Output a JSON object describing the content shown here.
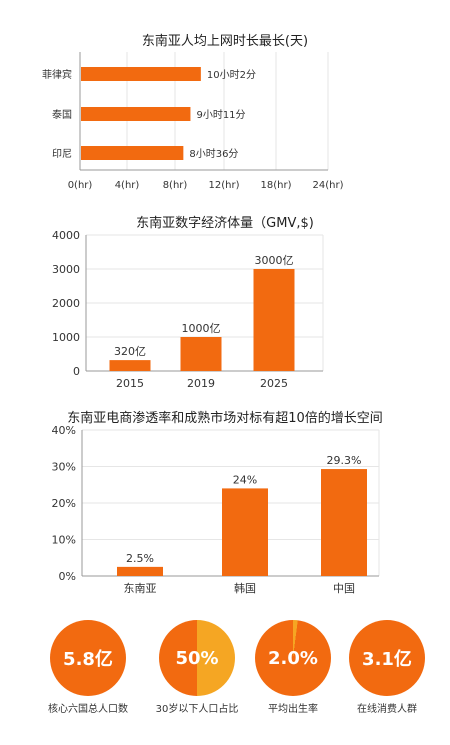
{
  "colors": {
    "bar": "#f26a10",
    "axis": "#999999",
    "grid": "#e6e6e6",
    "text": "#333333",
    "circle": "#f26a10",
    "pie_slice": "#f5a623"
  },
  "chart_data": [
    {
      "type": "bar",
      "orientation": "horizontal",
      "title": "东南亚人均上网时长最长(天)",
      "categories": [
        "菲律宾",
        "泰国",
        "印尼"
      ],
      "values": [
        10.03,
        9.18,
        8.6
      ],
      "data_labels": [
        "10小时2分",
        "9小时11分",
        "8小时36分"
      ],
      "xlim": [
        0,
        24
      ],
      "xticks": [
        "0(hr)",
        "4(hr)",
        "8(hr)",
        "12(hr)",
        "18(hr)",
        "24(hr)"
      ],
      "grid": true
    },
    {
      "type": "bar",
      "title": "东南亚数字经济体量（GMV,$)",
      "categories": [
        "2015",
        "2019",
        "2025"
      ],
      "values": [
        320,
        1000,
        3000
      ],
      "data_labels": [
        "320亿",
        "1000亿",
        "3000亿"
      ],
      "ylim": [
        0,
        4000
      ],
      "yticks": [
        "4000",
        "3000",
        "2000",
        "1000",
        "0"
      ],
      "grid": true
    },
    {
      "type": "bar",
      "title": "东南亚电商渗透率和成熟市场对标有超10倍的增长空间",
      "categories": [
        "东南亚",
        "韩国",
        "中国"
      ],
      "values": [
        2.5,
        24,
        29.3
      ],
      "data_labels": [
        "2.5%",
        "24%",
        "29.3%"
      ],
      "ylim": [
        0,
        40
      ],
      "yticks": [
        "40%",
        "30%",
        "20%",
        "10%",
        "0%"
      ],
      "grid": true
    }
  ],
  "stats": [
    {
      "value": "5.8亿",
      "label": "核心六国总人口数",
      "type": "solid"
    },
    {
      "value": "50%",
      "label": "30岁以下人口占比",
      "type": "pie",
      "fraction": 0.5
    },
    {
      "value": "2.0%",
      "label": "平均出生率",
      "type": "pie",
      "fraction": 0.02
    },
    {
      "value": "3.1亿",
      "label": "在线消费人群",
      "type": "solid"
    }
  ]
}
